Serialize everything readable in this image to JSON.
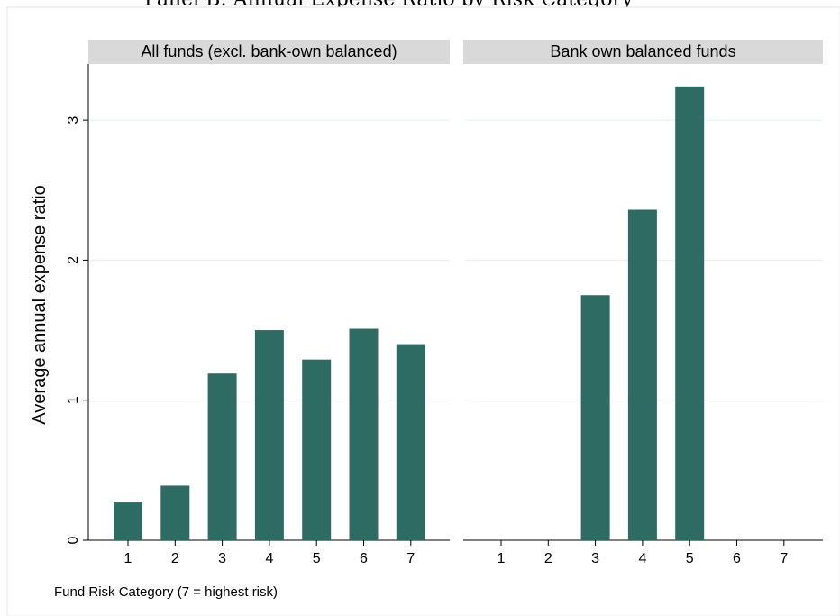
{
  "title": "Panel B: Annual Expense Ratio by Risk Category",
  "note": "Fund Risk Category (7 = highest risk)",
  "chart_data": {
    "type": "bar",
    "ylabel": "Average annual expense ratio",
    "xlabel": "",
    "ylim": [
      0,
      3.4
    ],
    "yticks": [
      0,
      1,
      2,
      3
    ],
    "categories": [
      "1",
      "2",
      "3",
      "4",
      "5",
      "6",
      "7"
    ],
    "bar_color": "#2e6b63",
    "grid": true,
    "panels": [
      {
        "name": "All funds (excl. bank-own balanced)",
        "values": [
          0.27,
          0.39,
          1.19,
          1.5,
          1.29,
          1.51,
          1.4
        ]
      },
      {
        "name": "Bank own balanced funds",
        "values": [
          null,
          null,
          1.75,
          2.36,
          3.24,
          null,
          null
        ]
      }
    ]
  }
}
